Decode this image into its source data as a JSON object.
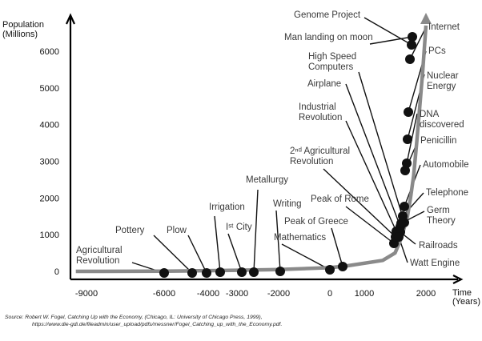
{
  "chart_data": {
    "type": "line",
    "ylabel": [
      "Population",
      "(Millions)"
    ],
    "xlabel": [
      "Time",
      "(Years)"
    ],
    "xlim": [
      -9750,
      2400
    ],
    "ylim": [
      -80,
      7000
    ],
    "x_ticks": [
      {
        "value": -9000,
        "label": "-9000"
      },
      {
        "value": -6000,
        "label": "-6000"
      },
      {
        "value": -4000,
        "label": "-4000"
      },
      {
        "value": -3000,
        "label": "-3000"
      },
      {
        "value": -2000,
        "label": "-2000"
      },
      {
        "value": 0,
        "label": "0"
      },
      {
        "value": 1000,
        "label": "1000"
      },
      {
        "value": 2000,
        "label": "2000"
      }
    ],
    "y_ticks": [
      {
        "value": 0,
        "label": "0"
      },
      {
        "value": 1000,
        "label": "1000"
      },
      {
        "value": 2000,
        "label": "2000"
      },
      {
        "value": 3000,
        "label": "3000"
      },
      {
        "value": 4000,
        "label": "4000"
      },
      {
        "value": 5000,
        "label": "5000"
      },
      {
        "value": 6000,
        "label": "6000"
      }
    ],
    "series": [
      {
        "x": [
          -9500,
          -6000,
          -5000,
          -4000,
          -3000,
          -2000,
          0,
          500,
          1300,
          1500,
          1600,
          1700,
          1750,
          1800,
          1850,
          1900,
          1950,
          2000
        ],
        "y": [
          0,
          5,
          10,
          20,
          30,
          50,
          100,
          150,
          300,
          500,
          900,
          1500,
          2000,
          2600,
          3500,
          4500,
          5500,
          6700
        ]
      }
    ],
    "events": [
      {
        "label": [
          "Agricultural",
          "Revolution"
        ],
        "x": -6000,
        "y": 0
      },
      {
        "label": [
          "Pottery"
        ],
        "x": -5000,
        "y": 0
      },
      {
        "label": [
          "Plow"
        ],
        "x": -4500,
        "y": 10
      },
      {
        "label": [
          "Irrigation"
        ],
        "x": -4000,
        "y": 15
      },
      {
        "label": [
          "Iˢᵗ City"
        ],
        "x": -3500,
        "y": 20
      },
      {
        "label": [
          "Metallurgy"
        ],
        "x": -3000,
        "y": 25
      },
      {
        "label": [
          "Writing"
        ],
        "x": -2800,
        "y": 30
      },
      {
        "label": [
          "Mathematics"
        ],
        "x": -2000,
        "y": 40
      },
      {
        "label": [
          "Peak of Greece"
        ],
        "x": -200,
        "y": 100
      },
      {
        "label": [
          "Peak of Rome"
        ],
        "x": 200,
        "y": 150
      },
      {
        "label": [
          "2ⁿᵈ Agricultural",
          "Revolution"
        ],
        "x": 1600,
        "y": 800
      },
      {
        "label": [
          "Industrial",
          "Revolution"
        ],
        "x": 1650,
        "y": 1000
      },
      {
        "label": [
          "Airplane"
        ],
        "x": 1700,
        "y": 1200
      },
      {
        "label": [
          "High Speed",
          "Computers"
        ],
        "x": 1720,
        "y": 1400
      },
      {
        "label": [
          "Man landing on moon"
        ],
        "x": 1740,
        "y": 1600
      },
      {
        "label": [
          "Genome Project"
        ],
        "x": 1950,
        "y": 6300
      },
      {
        "label": [
          "Internet"
        ],
        "x": 1970,
        "y": 6500
      },
      {
        "label": [
          "PCs"
        ],
        "x": 1980,
        "y": 5800
      },
      {
        "label": [
          "Nuclear",
          "Energy"
        ],
        "x": 1900,
        "y": 4400
      },
      {
        "label": [
          "DNA",
          "discovered"
        ],
        "x": 1850,
        "y": 3600
      },
      {
        "label": [
          "Penicillin"
        ],
        "x": 1870,
        "y": 3000
      },
      {
        "label": [
          "Automobile"
        ],
        "x": 1860,
        "y": 2800
      },
      {
        "label": [
          "Telephone"
        ],
        "x": 1800,
        "y": 1800
      },
      {
        "label": [
          "Germ",
          "Theory"
        ],
        "x": 1780,
        "y": 1500
      },
      {
        "label": [
          "Railroads"
        ],
        "x": 1740,
        "y": 1300
      },
      {
        "label": [
          "Watt Engine"
        ],
        "x": 1660,
        "y": 1000
      }
    ]
  },
  "source": {
    "line1": "Source: Robert W. Fogel, Catching Up with the Economy, (Chicago, IL: University of Chicago Press, 1999),",
    "line2": "https://www.die-gdi.de/fileadmin/user_upload/pdfs/messner/Fogel_Catching_up_with_the_Economy.pdf."
  }
}
